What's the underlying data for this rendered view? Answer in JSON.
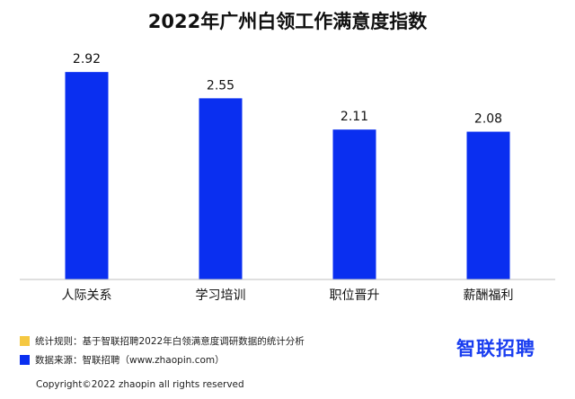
{
  "chart_data": {
    "type": "bar",
    "title": "2022年广州白领工作满意度指数",
    "categories": [
      "人际关系",
      "学习培训",
      "职位晋升",
      "薪酬福利"
    ],
    "values": [
      2.92,
      2.55,
      2.11,
      2.08
    ],
    "value_labels": [
      "2.92",
      "2.55",
      "2.11",
      "2.08"
    ],
    "xlabel": "",
    "ylabel": "",
    "ylim": [
      0,
      3.2
    ],
    "grid": false,
    "bar_color": "#0a2ff0"
  },
  "notes": {
    "rule_color": "#f5c842",
    "rule_text": "统计规则：基于智联招聘2022年白领满意度调研数据的统计分析",
    "source_color": "#0a2ff0",
    "source_text": "数据来源：智联招聘（www.zhaopin.com）"
  },
  "logo": "智联招聘",
  "copyright": "Copyright©2022 zhaopin all rights reserved"
}
